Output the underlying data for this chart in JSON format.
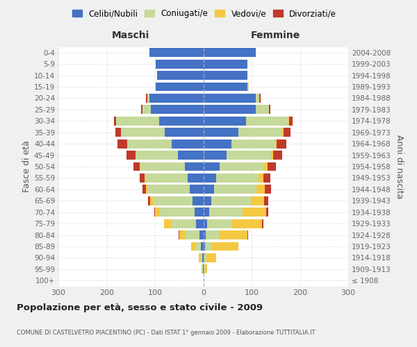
{
  "age_groups": [
    "100+",
    "95-99",
    "90-94",
    "85-89",
    "80-84",
    "75-79",
    "70-74",
    "65-69",
    "60-64",
    "55-59",
    "50-54",
    "45-49",
    "40-44",
    "35-39",
    "30-34",
    "25-29",
    "20-24",
    "15-19",
    "10-14",
    "5-9",
    "0-4"
  ],
  "birth_years": [
    "≤ 1908",
    "1909-1913",
    "1914-1918",
    "1919-1923",
    "1924-1928",
    "1929-1933",
    "1934-1938",
    "1939-1943",
    "1944-1948",
    "1949-1953",
    "1954-1958",
    "1959-1963",
    "1964-1968",
    "1969-1973",
    "1974-1978",
    "1979-1983",
    "1984-1988",
    "1989-1993",
    "1994-1998",
    "1999-2003",
    "2004-2008"
  ],
  "maschi": {
    "celibi": [
      0,
      1,
      2,
      5,
      8,
      15,
      18,
      23,
      28,
      32,
      38,
      52,
      65,
      80,
      92,
      108,
      112,
      98,
      96,
      98,
      112
    ],
    "coniugati": [
      0,
      1,
      3,
      10,
      28,
      52,
      72,
      82,
      88,
      88,
      92,
      88,
      92,
      90,
      88,
      18,
      4,
      0,
      0,
      0,
      0
    ],
    "vedovi": [
      0,
      2,
      5,
      10,
      14,
      14,
      10,
      5,
      3,
      2,
      1,
      1,
      1,
      0,
      0,
      0,
      0,
      0,
      0,
      0,
      0
    ],
    "divorziati": [
      0,
      0,
      0,
      0,
      1,
      1,
      2,
      5,
      7,
      10,
      14,
      18,
      20,
      12,
      5,
      3,
      2,
      0,
      0,
      0,
      0
    ]
  },
  "femmine": {
    "nubili": [
      0,
      1,
      1,
      3,
      5,
      8,
      12,
      16,
      22,
      26,
      34,
      48,
      58,
      72,
      88,
      108,
      108,
      92,
      92,
      92,
      108
    ],
    "coniugate": [
      0,
      2,
      5,
      14,
      28,
      52,
      70,
      82,
      88,
      88,
      92,
      92,
      92,
      92,
      88,
      28,
      8,
      2,
      0,
      0,
      0
    ],
    "vedove": [
      1,
      5,
      20,
      55,
      58,
      62,
      48,
      28,
      18,
      10,
      7,
      5,
      2,
      2,
      1,
      0,
      0,
      0,
      0,
      0,
      0
    ],
    "divorziate": [
      0,
      0,
      0,
      0,
      2,
      3,
      5,
      8,
      12,
      15,
      18,
      18,
      20,
      14,
      8,
      3,
      2,
      0,
      0,
      0,
      0
    ]
  },
  "colors": {
    "celibi": "#4472C4",
    "coniugati": "#C5D99A",
    "vedovi": "#F5C842",
    "divorziati": "#C0392B"
  },
  "xlim": 300,
  "title": "Popolazione per età, sesso e stato civile - 2009",
  "subtitle": "COMUNE DI CASTELVETRO PIACENTINO (PC) - Dati ISTAT 1° gennaio 2009 - Elaborazione TUTTITALIA.IT",
  "ylabel_left": "Fasce di età",
  "ylabel_right": "Anni di nascita",
  "xlabel_maschi": "Maschi",
  "xlabel_femmine": "Femmine",
  "legend_labels": [
    "Celibi/Nubili",
    "Coniugati/e",
    "Vedovi/e",
    "Divorziati/e"
  ],
  "bg_color": "#f0f0f0",
  "plot_bg": "#ffffff",
  "grid_color": "#cccccc"
}
